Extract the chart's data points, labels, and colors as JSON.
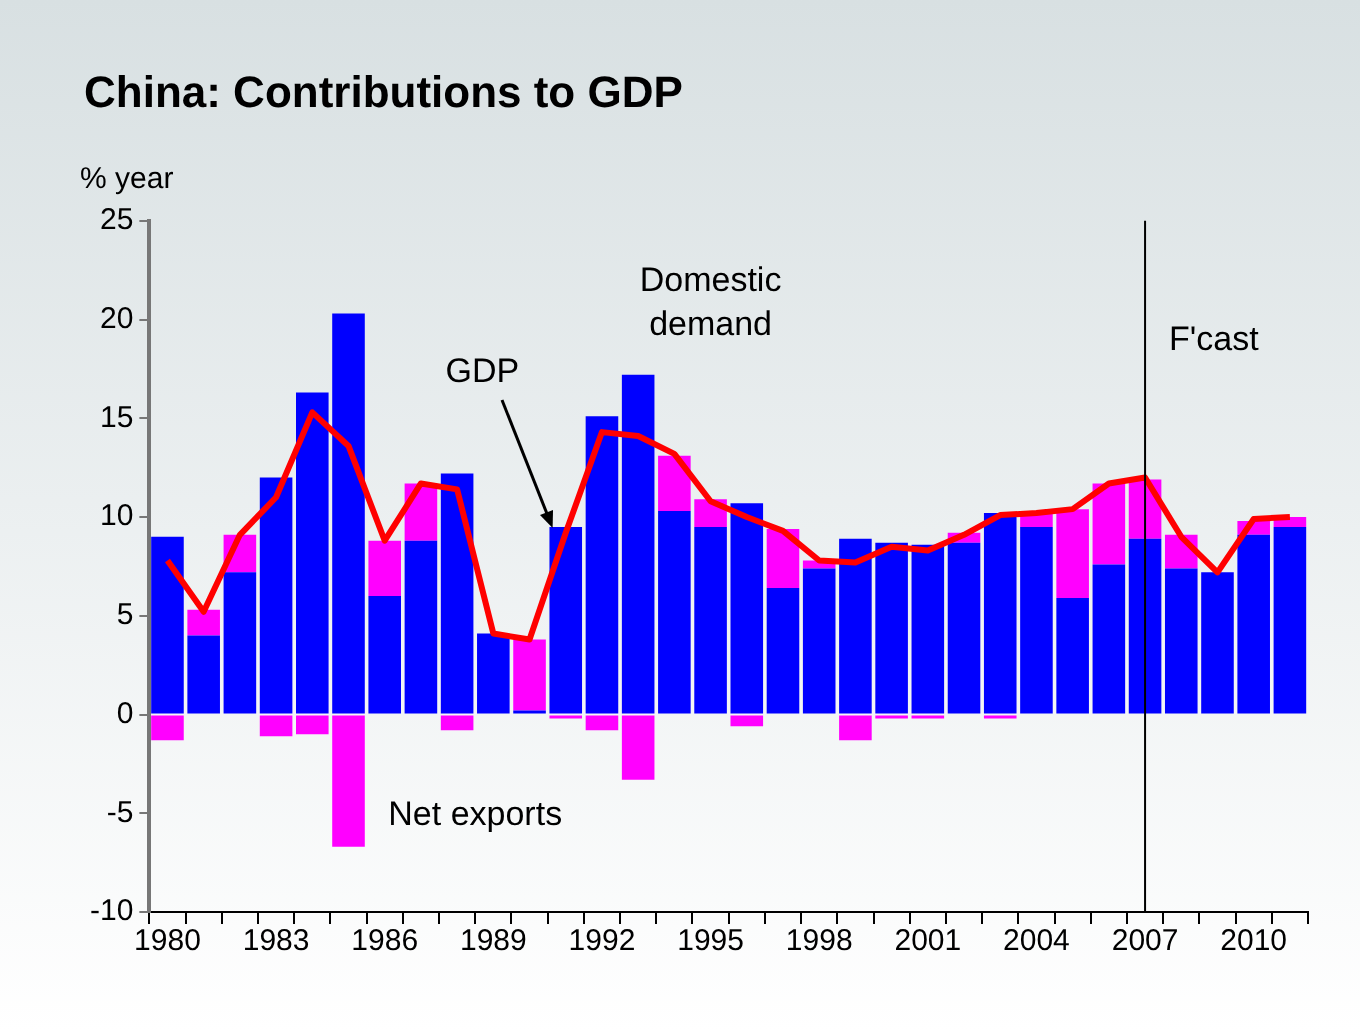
{
  "chart_data": {
    "type": "bar",
    "title": "China: Contributions to GDP",
    "ylabel": "% year",
    "stacked": true,
    "categories": [
      "1980",
      null,
      null,
      "1983",
      null,
      null,
      "1986",
      null,
      null,
      "1989",
      null,
      null,
      "1992",
      null,
      null,
      "1995",
      null,
      null,
      "1998",
      null,
      null,
      "2001",
      null,
      null,
      "2004",
      null,
      null,
      "2007",
      null,
      null,
      "2010",
      null
    ],
    "series": [
      {
        "name": "Domestic demand",
        "color": "#0000ff",
        "values": [
          9.0,
          4.0,
          7.2,
          12.0,
          16.3,
          20.3,
          6.0,
          8.8,
          12.2,
          4.1,
          0.2,
          9.5,
          15.1,
          17.2,
          10.3,
          9.5,
          10.7,
          6.4,
          7.4,
          8.9,
          8.7,
          8.6,
          8.7,
          10.2,
          9.5,
          5.9,
          7.6,
          8.9,
          7.4,
          7.2,
          9.1,
          9.5
        ]
      },
      {
        "name": "Net exports",
        "color": "#ff00ff",
        "values": [
          -1.3,
          1.3,
          1.9,
          -1.1,
          -1.0,
          -6.7,
          2.8,
          2.9,
          -0.8,
          0,
          3.6,
          -0.2,
          -0.8,
          -3.3,
          2.8,
          1.4,
          -0.6,
          3.0,
          0.4,
          -1.3,
          -0.2,
          -0.2,
          0.5,
          -0.2,
          0.7,
          4.5,
          4.1,
          3.0,
          1.7,
          0,
          0.7,
          0.5
        ]
      },
      {
        "name": "GDP",
        "type": "line",
        "color": "#ff0000",
        "values": [
          7.8,
          5.2,
          9.1,
          11.0,
          15.3,
          13.6,
          8.8,
          11.7,
          11.4,
          4.1,
          3.8,
          9.2,
          14.3,
          14.1,
          13.2,
          10.8,
          10.0,
          9.3,
          7.8,
          7.7,
          8.5,
          8.3,
          9.1,
          10.1,
          10.2,
          10.4,
          11.7,
          12.0,
          9.0,
          7.2,
          9.9,
          10.0
        ]
      }
    ],
    "ylim": [
      -10,
      25
    ],
    "yticks": [
      -10,
      -5,
      0,
      5,
      10,
      15,
      20,
      25
    ],
    "grid": false,
    "legend": false,
    "marker": "none",
    "line_style": "solid",
    "ref_lines": [
      {
        "axis": "x",
        "value": "2007",
        "label": "F'cast",
        "color": "#000000"
      }
    ]
  }
}
